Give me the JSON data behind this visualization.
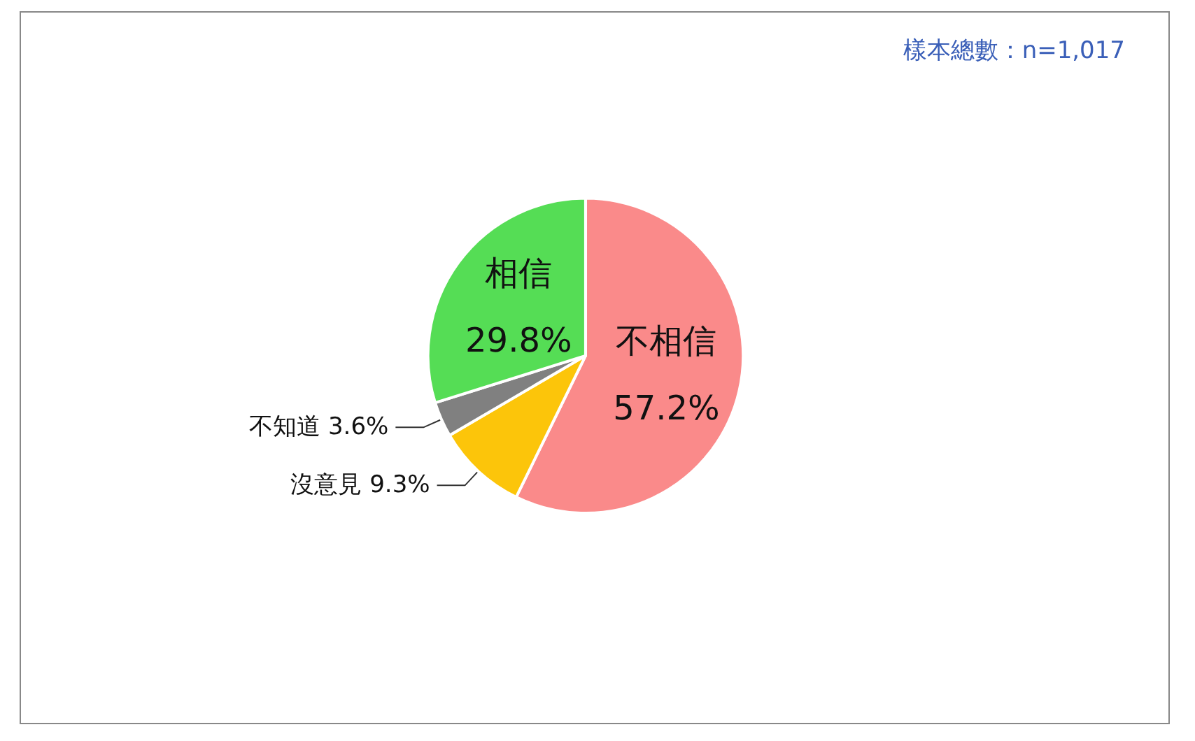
{
  "chart_data": {
    "type": "pie",
    "categories": [
      "不相信",
      "沒意見",
      "不知道",
      "相信"
    ],
    "values": [
      57.2,
      9.3,
      3.6,
      29.8
    ],
    "colors": [
      "#fa8a8a",
      "#fcc50a",
      "#808080",
      "#55dd55"
    ],
    "value_labels": [
      "57.2%",
      "9.3%",
      "3.6%",
      "29.8%"
    ],
    "annotations": [
      "樣本總數：n=1,017"
    ]
  }
}
